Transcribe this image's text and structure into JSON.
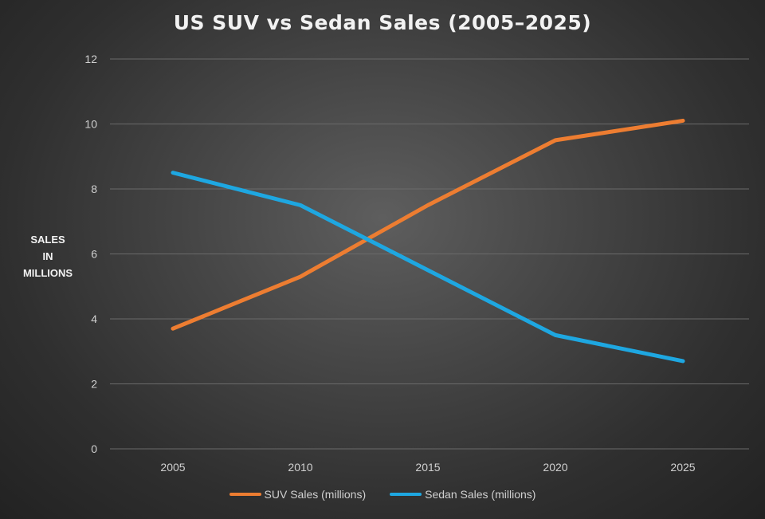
{
  "chart_data": {
    "type": "line",
    "title": "US SUV vs Sedan Sales (2005–2025)",
    "ylabel_lines": [
      "SALES",
      "IN",
      "MILLIONS"
    ],
    "xlabel": "",
    "categories": [
      "2005",
      "2010",
      "2015",
      "2020",
      "2025"
    ],
    "ylim": [
      0,
      12
    ],
    "yticks": [
      "0",
      "2",
      "4",
      "6",
      "8",
      "10",
      "12"
    ],
    "grid": true,
    "legend_position": "bottom",
    "series": [
      {
        "name": "SUV Sales (millions)",
        "color": "#ed7d31",
        "values": [
          3.7,
          5.3,
          7.5,
          9.5,
          10.1
        ]
      },
      {
        "name": "Sedan Sales (millions)",
        "color": "#1ea7e1",
        "values": [
          8.5,
          7.5,
          5.5,
          3.5,
          2.7
        ]
      }
    ]
  }
}
